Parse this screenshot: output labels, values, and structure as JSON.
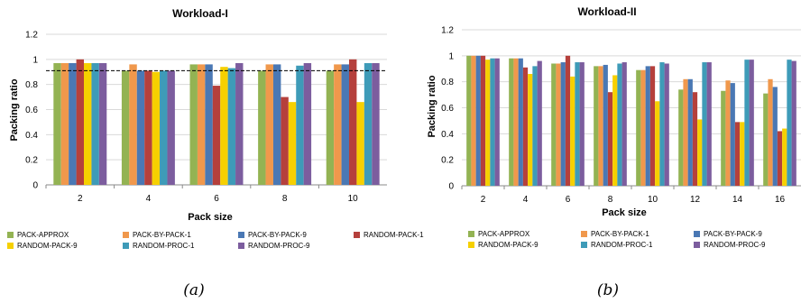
{
  "colors": {
    "PACK-APPROX": "#93b353",
    "PACK-BY-PACK-1": "#f0984c",
    "PACK-BY-PACK-9": "#4a78b4",
    "RANDOM-PACK-1": "#b5403c",
    "RANDOM-PACK-9": "#f6d000",
    "RANDOM-PROC-1": "#3e9bb8",
    "RANDOM-PROC-9": "#7c5d9e"
  },
  "chart_data": [
    {
      "type": "bar",
      "title": "Workload-I",
      "caption": "(a)",
      "xlabel": "Pack size",
      "ylabel": "Packing ratio",
      "ylim": [
        0,
        1.2
      ],
      "yticks": [
        "0",
        "0.2",
        "0.4",
        "0.6",
        "0.8",
        "1",
        "1.2"
      ],
      "grid": true,
      "legend": "bottom",
      "reference_line": {
        "style": "dashed",
        "value": 0.91
      },
      "categories": [
        "2",
        "4",
        "6",
        "8",
        "10"
      ],
      "series": [
        {
          "name": "PACK-APPROX",
          "values": [
            0.97,
            0.91,
            0.96,
            0.91,
            0.91
          ]
        },
        {
          "name": "PACK-BY-PACK-1",
          "values": [
            0.97,
            0.96,
            0.96,
            0.96,
            0.96
          ]
        },
        {
          "name": "PACK-BY-PACK-9",
          "values": [
            0.97,
            0.91,
            0.96,
            0.96,
            0.96
          ]
        },
        {
          "name": "RANDOM-PACK-1",
          "values": [
            1.0,
            0.91,
            0.79,
            0.7,
            1.0
          ]
        },
        {
          "name": "RANDOM-PACK-9",
          "values": [
            0.97,
            0.9,
            0.94,
            0.66,
            0.66
          ]
        },
        {
          "name": "RANDOM-PROC-1",
          "values": [
            0.97,
            0.91,
            0.93,
            0.95,
            0.97
          ]
        },
        {
          "name": "RANDOM-PROC-9",
          "values": [
            0.97,
            0.91,
            0.97,
            0.97,
            0.97
          ]
        }
      ]
    },
    {
      "type": "bar",
      "title": "Workload-II",
      "caption": "(b)",
      "xlabel": "Pack size",
      "ylabel": "Packing ratio",
      "ylim": [
        0,
        1.2
      ],
      "yticks": [
        "0",
        "0.2",
        "0.4",
        "0.6",
        "0.8",
        "1",
        "1.2"
      ],
      "grid": true,
      "legend": "bottom",
      "categories": [
        "2",
        "4",
        "6",
        "8",
        "10",
        "12",
        "14",
        "16"
      ],
      "series": [
        {
          "name": "PACK-APPROX",
          "values": [
            1.0,
            0.98,
            0.94,
            0.92,
            0.89,
            0.74,
            0.73,
            0.71
          ]
        },
        {
          "name": "PACK-BY-PACK-1",
          "values": [
            1.0,
            0.98,
            0.94,
            0.92,
            0.89,
            0.82,
            0.81,
            0.82
          ]
        },
        {
          "name": "PACK-BY-PACK-9",
          "values": [
            1.0,
            0.98,
            0.95,
            0.93,
            0.92,
            0.82,
            0.79,
            0.76
          ]
        },
        {
          "name": "RANDOM-PACK-1",
          "values": [
            1.0,
            0.91,
            1.0,
            0.72,
            0.92,
            0.72,
            0.49,
            0.42
          ]
        },
        {
          "name": "RANDOM-PACK-9",
          "values": [
            0.97,
            0.86,
            0.84,
            0.85,
            0.65,
            0.51,
            0.49,
            0.44
          ]
        },
        {
          "name": "RANDOM-PROC-1",
          "values": [
            0.98,
            0.92,
            0.95,
            0.94,
            0.95,
            0.95,
            0.97,
            0.97
          ]
        },
        {
          "name": "RANDOM-PROC-9",
          "values": [
            0.98,
            0.96,
            0.95,
            0.95,
            0.94,
            0.95,
            0.97,
            0.96
          ]
        }
      ]
    }
  ]
}
